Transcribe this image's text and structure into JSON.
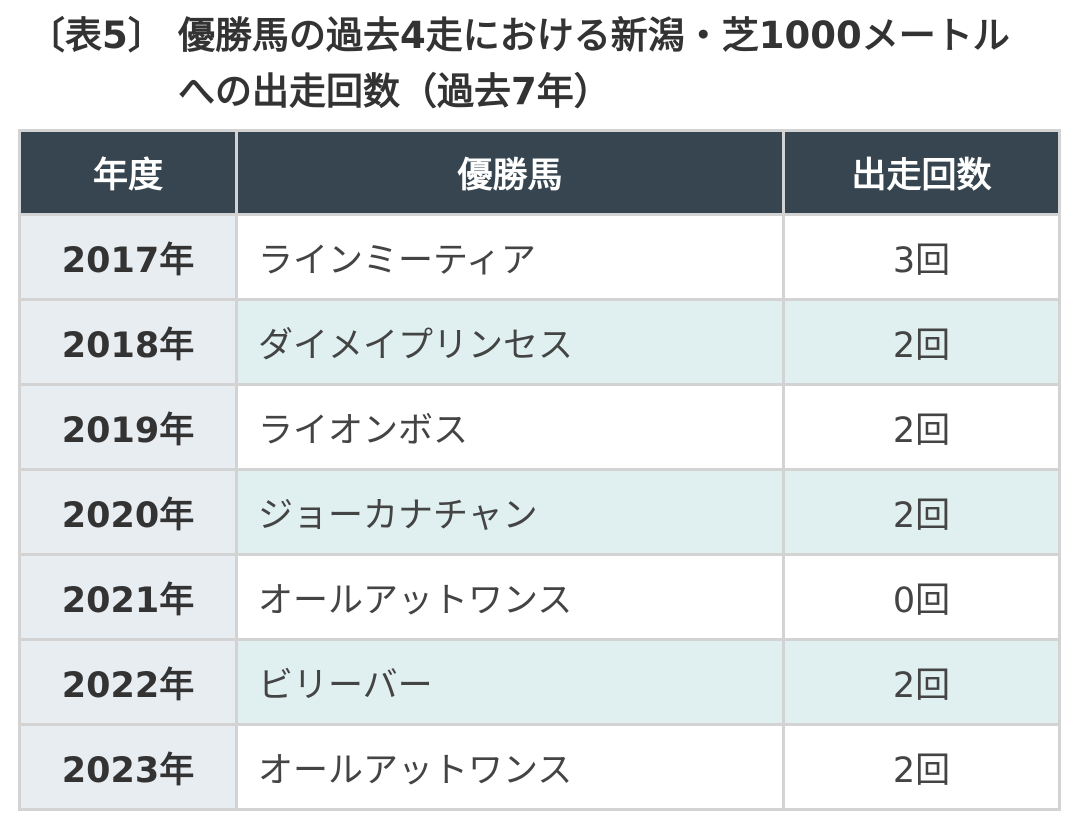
{
  "caption": {
    "label": "〔表5〕",
    "line1": "優勝馬の過去4走における新潟・芝1000メートル",
    "line2": "への出走回数（過去7年）"
  },
  "table": {
    "headers": [
      "年度",
      "優勝馬",
      "出走回数"
    ],
    "rows": [
      {
        "year": "2017年",
        "horse": "ラインミーティア",
        "count": "3回"
      },
      {
        "year": "2018年",
        "horse": "ダイメイプリンセス",
        "count": "2回"
      },
      {
        "year": "2019年",
        "horse": "ライオンボス",
        "count": "2回"
      },
      {
        "year": "2020年",
        "horse": "ジョーカナチャン",
        "count": "2回"
      },
      {
        "year": "2021年",
        "horse": "オールアットワンス",
        "count": "0回"
      },
      {
        "year": "2022年",
        "horse": "ビリーバー",
        "count": "2回"
      },
      {
        "year": "2023年",
        "horse": "オールアットワンス",
        "count": "2回"
      }
    ]
  },
  "colors": {
    "header_bg": "#36454f",
    "year_bg": "#e8edf1",
    "alt_row_bg": "#e0f0f0",
    "border": "#d3d3d3"
  }
}
